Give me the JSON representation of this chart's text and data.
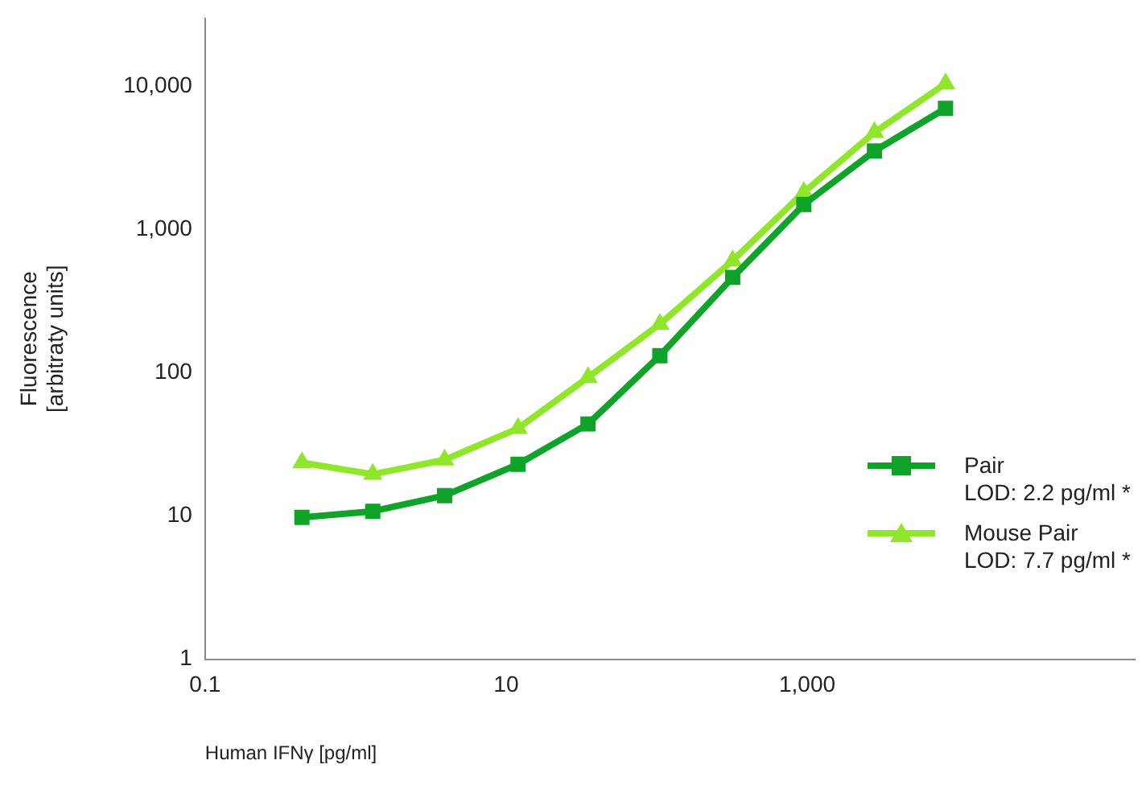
{
  "chart_data": {
    "type": "line",
    "xlabel": "Human IFNγ [pg/ml]",
    "ylabel": "Fluorescence\n[arbitraty units]",
    "log": "xy",
    "xlim": [
      0.1,
      150000
    ],
    "xticks": [
      {
        "value": 0.1,
        "label": "0.1"
      },
      {
        "value": 10,
        "label": "10"
      },
      {
        "value": 1000,
        "label": "1,000"
      }
    ],
    "ylim": [
      1,
      30000
    ],
    "yticks": [
      {
        "value": 1,
        "label": "1"
      },
      {
        "value": 10,
        "label": "10"
      },
      {
        "value": 100,
        "label": "100"
      },
      {
        "value": 1000,
        "label": "1,000"
      },
      {
        "value": 10000,
        "label": "10,000"
      }
    ],
    "x": [
      0.44,
      1.3,
      3.9,
      12,
      35,
      105,
      320,
      950,
      2800,
      8300
    ],
    "series": [
      {
        "name": "Pair\nLOD: 2.2 pg/ml *",
        "color": "#0fa32a",
        "marker": "square",
        "values": [
          9.8,
          10.8,
          13.9,
          23,
          44,
          132,
          465,
          1500,
          3550,
          7050
        ]
      },
      {
        "name": "Mouse Pair\nLOD: 7.7 pg/ml *",
        "color": "#8fe62a",
        "marker": "triangle",
        "values": [
          23.6,
          19.6,
          24.7,
          41,
          93,
          219,
          610,
          1830,
          4800,
          10500
        ]
      }
    ],
    "legend": "bottom right",
    "grid": false
  }
}
